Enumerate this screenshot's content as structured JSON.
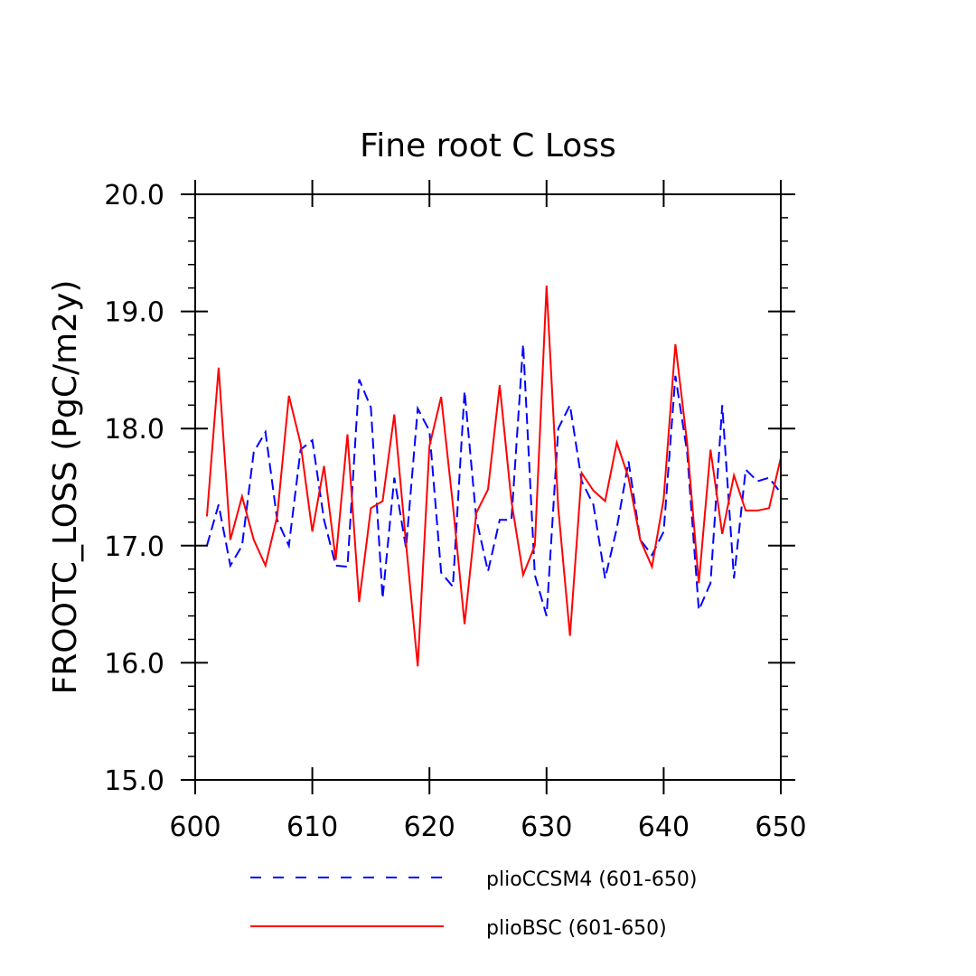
{
  "chart_data": {
    "type": "line",
    "title": "Fine root C Loss",
    "xlabel": "",
    "ylabel": "FROOTC_LOSS  (PgC/m2y)",
    "xlim": [
      600,
      650
    ],
    "ylim": [
      15.0,
      20.0
    ],
    "xticks": [
      600,
      610,
      620,
      630,
      640,
      650
    ],
    "yticks": [
      15.0,
      16.0,
      17.0,
      18.0,
      19.0,
      20.0
    ],
    "xtick_labels": [
      "600",
      "610",
      "620",
      "630",
      "640",
      "650"
    ],
    "ytick_labels": [
      "15.0",
      "16.0",
      "17.0",
      "18.0",
      "19.0",
      "20.0"
    ],
    "x_minor_step": 10,
    "y_minor_step": 0.2,
    "grid": false,
    "legend": "bottom",
    "x": [
      601,
      602,
      603,
      604,
      605,
      606,
      607,
      608,
      609,
      610,
      611,
      612,
      613,
      614,
      615,
      616,
      617,
      618,
      619,
      620,
      621,
      622,
      623,
      624,
      625,
      626,
      627,
      628,
      629,
      630,
      631,
      632,
      633,
      634,
      635,
      636,
      637,
      638,
      639,
      640,
      641,
      642,
      643,
      644,
      645,
      646,
      647,
      648,
      649,
      650
    ],
    "series": [
      {
        "name": "plioCCSM4 (601-650)",
        "color": "#0000ff",
        "dash": "dashed",
        "values": [
          17.0,
          17.35,
          16.83,
          17.0,
          17.8,
          17.97,
          17.22,
          17.0,
          17.82,
          17.9,
          17.22,
          16.83,
          16.82,
          18.42,
          18.18,
          16.55,
          17.58,
          16.98,
          18.17,
          17.98,
          16.77,
          16.65,
          18.32,
          17.23,
          16.78,
          17.22,
          17.22,
          18.72,
          16.75,
          16.4,
          18.0,
          18.2,
          17.55,
          17.35,
          16.72,
          17.15,
          17.72,
          17.05,
          16.92,
          17.12,
          18.45,
          17.8,
          16.45,
          16.68,
          18.2,
          16.72,
          17.65,
          17.55,
          17.58,
          17.45
        ]
      },
      {
        "name": "plioBSC (601-650)",
        "color": "#ff0000",
        "dash": "solid",
        "values": [
          17.25,
          18.52,
          17.05,
          17.42,
          17.05,
          16.83,
          17.25,
          18.28,
          17.87,
          17.12,
          17.68,
          16.88,
          17.95,
          16.52,
          17.32,
          17.38,
          18.12,
          17.02,
          15.97,
          17.85,
          18.27,
          17.35,
          16.33,
          17.28,
          17.48,
          18.37,
          17.38,
          16.75,
          17.0,
          19.22,
          17.32,
          16.23,
          17.62,
          17.47,
          17.38,
          17.88,
          17.58,
          17.05,
          16.82,
          17.4,
          18.72,
          17.88,
          16.68,
          17.82,
          17.1,
          17.6,
          17.3,
          17.3,
          17.32,
          17.75
        ]
      }
    ]
  }
}
